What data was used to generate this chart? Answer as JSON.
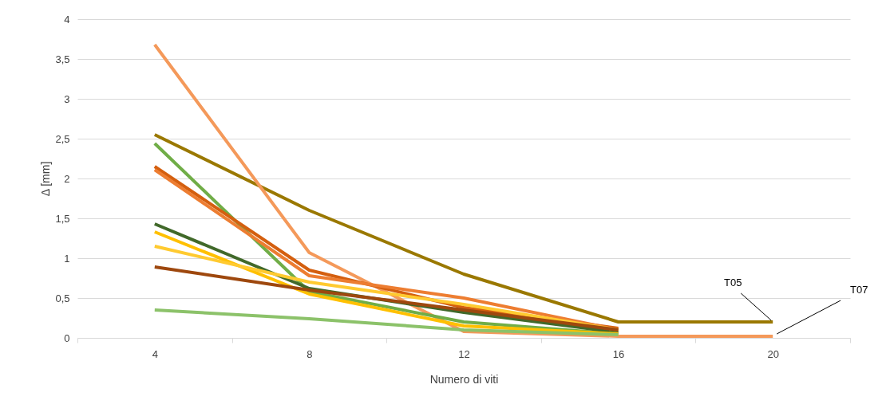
{
  "chart_data": {
    "type": "line",
    "xlabel": "Numero di viti",
    "ylabel": "Δ [mm]",
    "categories": [
      "4",
      "8",
      "12",
      "16",
      "20"
    ],
    "series": [
      {
        "color": "#9a7800",
        "values": [
          2.55,
          1.6,
          0.8,
          0.2,
          0.2
        ]
      },
      {
        "color": "#f4995a",
        "values": [
          3.68,
          1.07,
          0.08,
          0.02,
          0.02
        ]
      },
      {
        "color": "#70ad47",
        "values": [
          2.44,
          0.58,
          0.2,
          0.05,
          null
        ]
      },
      {
        "color": "#d45f0f",
        "values": [
          2.15,
          0.85,
          0.38,
          0.12,
          null
        ]
      },
      {
        "color": "#ed7d31",
        "values": [
          2.11,
          0.78,
          0.5,
          0.1,
          null
        ]
      },
      {
        "color": "#41692a",
        "values": [
          1.43,
          0.62,
          0.32,
          0.07,
          null
        ]
      },
      {
        "color": "#ffc000",
        "values": [
          1.33,
          0.55,
          0.15,
          0.05,
          null
        ]
      },
      {
        "color": "#ffca30",
        "values": [
          1.15,
          0.7,
          0.42,
          0.1,
          null
        ]
      },
      {
        "color": "#9e480e",
        "values": [
          0.89,
          0.6,
          0.35,
          0.1,
          null
        ]
      },
      {
        "color": "#8cc26a",
        "values": [
          0.35,
          0.24,
          0.1,
          0.04,
          null
        ]
      }
    ],
    "ylim": [
      0,
      4
    ],
    "yticks": [
      0,
      {
        "value": 0.5,
        "label": "0,5"
      },
      1,
      {
        "value": 1.5,
        "label": "1,5"
      },
      2,
      {
        "value": 2.5,
        "label": "2,5"
      },
      3,
      {
        "value": 3.5,
        "label": "3,5"
      },
      4
    ],
    "grid": "y",
    "legend": false,
    "marker": "none",
    "line_style": "solid",
    "annotations": [
      {
        "text": "T05",
        "x": "20",
        "y": 0.2
      },
      {
        "text": "T07",
        "x": "20",
        "y": 0.02
      }
    ]
  }
}
